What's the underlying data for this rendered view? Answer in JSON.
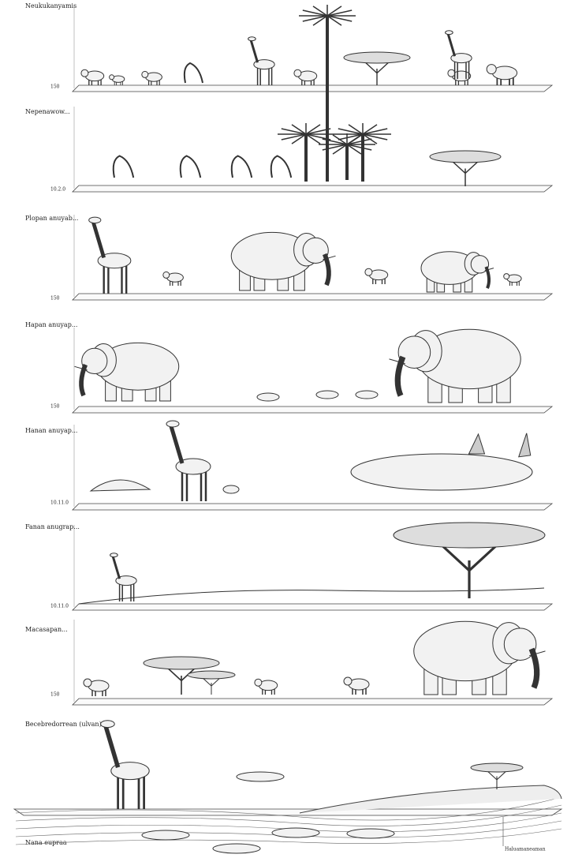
{
  "tiers": [
    {
      "label": "Neukukanyamis",
      "scale": "150"
    },
    {
      "label": "Nepenawow...",
      "scale": "10.2.0"
    },
    {
      "label": "Plopan anuyab...",
      "scale": "150"
    },
    {
      "label": "Hapan anuyap...",
      "scale": "150"
    },
    {
      "label": "Hanan anuyap...",
      "scale": "10.11.0"
    },
    {
      "label": "Fanan anugrap...",
      "scale": "10.11.0"
    },
    {
      "label": "Macasapan...",
      "scale": "150"
    },
    {
      "label": "Becebredorrean (ulvan)"
    }
  ],
  "footer": {
    "label": "Nana eupraa",
    "note": "Haluamaneaman"
  }
}
